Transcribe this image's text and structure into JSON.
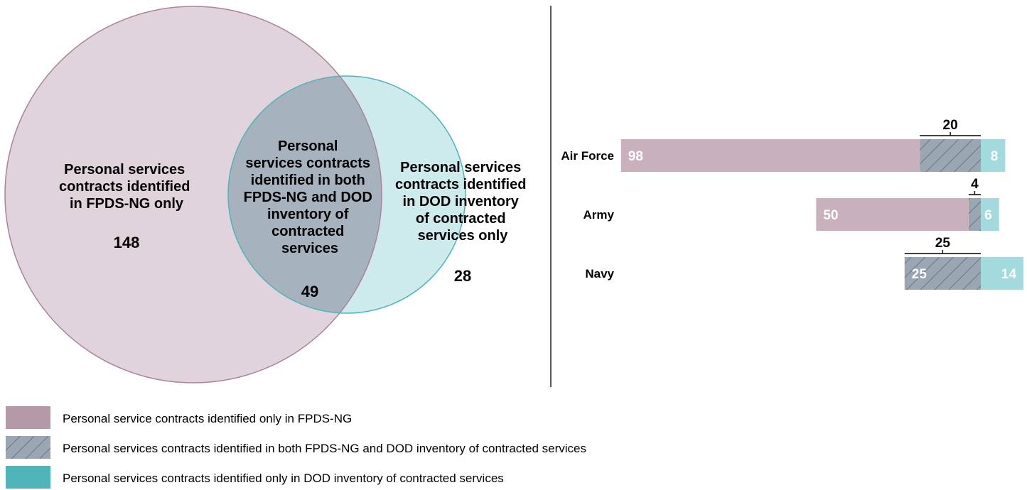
{
  "colors": {
    "fpds_only": "#c8b0bd",
    "both": "#9aa6b2",
    "dod_only": "#a3dadd",
    "fpds_circle_fill": "#e1d3db",
    "fpds_circle_stroke": "#a98398",
    "dod_circle_fill": "#cdeaec",
    "dod_circle_stroke": "#4bb6ba",
    "overlap_fill": "#a7b2bf",
    "legend_fpds": "#b49aa9",
    "legend_dod": "#50b5b8"
  },
  "venn": {
    "left": {
      "lines": [
        "Personal services",
        "contracts identified",
        "in FPDS-NG only"
      ],
      "value": "148"
    },
    "overlap": {
      "lines": [
        "Personal",
        "services contracts",
        "identified in both",
        "FPDS-NG and DOD",
        "inventory of",
        "contracted",
        "services"
      ],
      "value": "49"
    },
    "right": {
      "lines": [
        "Personal services",
        "contracts identified",
        "in DOD inventory",
        "of contracted",
        "services only"
      ],
      "value": "28"
    }
  },
  "chart_data": {
    "type": "bar",
    "orientation": "horizontal-stacked",
    "categories": [
      "Air Force",
      "Army",
      "Navy"
    ],
    "series": [
      {
        "name": "Personal service contracts identified only in FPDS-NG",
        "key": "fpds_only",
        "values": [
          98,
          50,
          0
        ]
      },
      {
        "name": "Personal services contracts identified in both FPDS-NG and DOD inventory of contracted services",
        "key": "both",
        "values": [
          20,
          4,
          25
        ]
      },
      {
        "name": "Personal services contracts identified only in DOD inventory of contracted services",
        "key": "dod_only",
        "values": [
          8,
          6,
          14
        ]
      }
    ],
    "bar_labels": [
      {
        "fpds_only": "98",
        "both": "20",
        "dod_only": "8"
      },
      {
        "fpds_only": "50",
        "both": "4",
        "dod_only": "6"
      },
      {
        "fpds_only": "",
        "both": "25",
        "dod_only": "14"
      }
    ],
    "inside_label_on_both": [
      false,
      false,
      true
    ],
    "alignment": "overlap segment ends at a common line",
    "legend_position": "bottom-left"
  },
  "legend": [
    {
      "label": "Personal service contracts identified only in FPDS-NG",
      "key": "fpds_only"
    },
    {
      "label": "Personal services contracts identified in both FPDS-NG and DOD inventory of contracted services",
      "key": "both"
    },
    {
      "label": "Personal services contracts identified only in DOD inventory of contracted services",
      "key": "dod_only"
    }
  ]
}
